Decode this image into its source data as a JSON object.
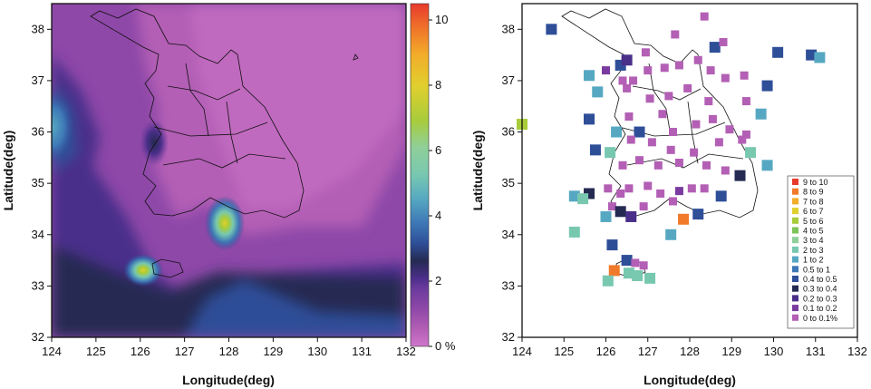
{
  "chart_data": [
    {
      "type": "heatmap",
      "xlabel": "Longitude(deg)",
      "ylabel": "Latitude(deg)",
      "xlim": [
        124,
        132
      ],
      "ylim": [
        32,
        38.5
      ],
      "xticks": [
        "124",
        "125",
        "126",
        "127",
        "128",
        "129",
        "130",
        "131",
        "132"
      ],
      "yticks": [
        "32",
        "33",
        "34",
        "35",
        "36",
        "37",
        "38"
      ],
      "colorbar": {
        "range": [
          0,
          10.5
        ],
        "labels": [
          {
            "value": 0,
            "text": "0 %"
          },
          {
            "value": 2,
            "text": "2"
          },
          {
            "value": 4,
            "text": "4"
          },
          {
            "value": 6,
            "text": "6"
          },
          {
            "value": 8,
            "text": "8"
          },
          {
            "value": 10,
            "text": "10"
          }
        ]
      },
      "hotspots": [
        {
          "lon": 127.8,
          "lat": 34.25,
          "value": 9
        },
        {
          "lon": 126.15,
          "lat": 33.3,
          "value": 7
        },
        {
          "lon": 124.0,
          "lat": 36.0,
          "value": 4
        },
        {
          "lon": 125.7,
          "lat": 35.7,
          "value": 2
        }
      ]
    },
    {
      "type": "scatter",
      "xlabel": "Longitude(deg)",
      "ylabel": "Latitude(deg)",
      "xlim": [
        124,
        132
      ],
      "ylim": [
        32,
        38.5
      ],
      "xticks": [
        "124",
        "125",
        "126",
        "127",
        "128",
        "129",
        "130",
        "131",
        "132"
      ],
      "yticks": [
        "32",
        "33",
        "34",
        "35",
        "36",
        "37",
        "38"
      ],
      "legend": {
        "position": "bottom-right",
        "entries": [
          {
            "label": "9  to  10",
            "color": "#e83a2c"
          },
          {
            "label": "8  to  9",
            "color": "#f07a2a"
          },
          {
            "label": "7  to  8",
            "color": "#f2ad2a"
          },
          {
            "label": "6  to  7",
            "color": "#e1cf2e"
          },
          {
            "label": "5  to  6",
            "color": "#a8cc3a"
          },
          {
            "label": "4  to  5",
            "color": "#7cc35a"
          },
          {
            "label": "3  to  4",
            "color": "#8fcf9a"
          },
          {
            "label": "2  to  3",
            "color": "#78c8b0"
          },
          {
            "label": "1  to  2",
            "color": "#56a8c2"
          },
          {
            "label": "0.5  to  1",
            "color": "#3e78b6"
          },
          {
            "label": "0.4  to  0.5",
            "color": "#2e4e98"
          },
          {
            "label": "0.3  to  0.4",
            "color": "#252a52"
          },
          {
            "label": "0.2  to  0.3",
            "color": "#4a2f8a"
          },
          {
            "label": "0.1  to  0.2",
            "color": "#7a3aa0"
          },
          {
            "label": "0  to  0.1%",
            "color": "#b35fb5"
          }
        ]
      },
      "points": [
        {
          "x": 124.7,
          "y": 38.0,
          "c": 10
        },
        {
          "x": 124.0,
          "y": 36.15,
          "c": 4
        },
        {
          "x": 125.6,
          "y": 37.1,
          "c": 8
        },
        {
          "x": 126.0,
          "y": 37.2,
          "c": 13
        },
        {
          "x": 126.35,
          "y": 37.3,
          "c": 10
        },
        {
          "x": 126.5,
          "y": 37.4,
          "c": 12
        },
        {
          "x": 126.95,
          "y": 37.55,
          "c": 14
        },
        {
          "x": 127.65,
          "y": 37.9,
          "c": 14
        },
        {
          "x": 128.35,
          "y": 38.25,
          "c": 14
        },
        {
          "x": 128.6,
          "y": 37.65,
          "c": 10
        },
        {
          "x": 128.8,
          "y": 37.75,
          "c": 14
        },
        {
          "x": 130.1,
          "y": 37.55,
          "c": 10
        },
        {
          "x": 130.9,
          "y": 37.5,
          "c": 10
        },
        {
          "x": 131.1,
          "y": 37.45,
          "c": 8
        },
        {
          "x": 125.8,
          "y": 36.78,
          "c": 8
        },
        {
          "x": 125.6,
          "y": 36.25,
          "c": 10
        },
        {
          "x": 126.25,
          "y": 36.0,
          "c": 8
        },
        {
          "x": 126.4,
          "y": 37.0,
          "c": 14
        },
        {
          "x": 126.65,
          "y": 37.0,
          "c": 14
        },
        {
          "x": 127.0,
          "y": 37.2,
          "c": 14
        },
        {
          "x": 127.4,
          "y": 37.25,
          "c": 14
        },
        {
          "x": 127.75,
          "y": 37.3,
          "c": 14
        },
        {
          "x": 128.2,
          "y": 37.4,
          "c": 14
        },
        {
          "x": 128.5,
          "y": 37.2,
          "c": 14
        },
        {
          "x": 128.85,
          "y": 37.05,
          "c": 14
        },
        {
          "x": 129.3,
          "y": 37.1,
          "c": 14
        },
        {
          "x": 126.5,
          "y": 36.85,
          "c": 14
        },
        {
          "x": 127.05,
          "y": 36.65,
          "c": 14
        },
        {
          "x": 127.5,
          "y": 36.7,
          "c": 14
        },
        {
          "x": 127.95,
          "y": 36.85,
          "c": 14
        },
        {
          "x": 128.45,
          "y": 36.6,
          "c": 14
        },
        {
          "x": 129.35,
          "y": 36.6,
          "c": 14
        },
        {
          "x": 129.85,
          "y": 36.9,
          "c": 10
        },
        {
          "x": 129.7,
          "y": 36.35,
          "c": 8
        },
        {
          "x": 126.55,
          "y": 36.3,
          "c": 14
        },
        {
          "x": 126.8,
          "y": 36.0,
          "c": 10
        },
        {
          "x": 127.35,
          "y": 36.35,
          "c": 14
        },
        {
          "x": 127.6,
          "y": 36.0,
          "c": 14
        },
        {
          "x": 128.15,
          "y": 36.15,
          "c": 14
        },
        {
          "x": 128.55,
          "y": 36.25,
          "c": 14
        },
        {
          "x": 128.95,
          "y": 36.05,
          "c": 14
        },
        {
          "x": 129.35,
          "y": 35.95,
          "c": 14
        },
        {
          "x": 129.25,
          "y": 35.85,
          "c": 14
        },
        {
          "x": 125.75,
          "y": 35.65,
          "c": 10
        },
        {
          "x": 126.1,
          "y": 35.6,
          "c": 7
        },
        {
          "x": 126.6,
          "y": 35.85,
          "c": 14
        },
        {
          "x": 127.1,
          "y": 35.8,
          "c": 14
        },
        {
          "x": 127.55,
          "y": 35.65,
          "c": 14
        },
        {
          "x": 128.1,
          "y": 35.6,
          "c": 14
        },
        {
          "x": 128.7,
          "y": 35.8,
          "c": 14
        },
        {
          "x": 129.45,
          "y": 35.6,
          "c": 7
        },
        {
          "x": 129.85,
          "y": 35.35,
          "c": 8
        },
        {
          "x": 126.4,
          "y": 35.35,
          "c": 14
        },
        {
          "x": 126.8,
          "y": 35.45,
          "c": 14
        },
        {
          "x": 127.25,
          "y": 35.35,
          "c": 14
        },
        {
          "x": 127.75,
          "y": 35.4,
          "c": 14
        },
        {
          "x": 128.4,
          "y": 35.35,
          "c": 14
        },
        {
          "x": 128.85,
          "y": 35.25,
          "c": 14
        },
        {
          "x": 129.2,
          "y": 35.15,
          "c": 11
        },
        {
          "x": 125.6,
          "y": 34.8,
          "c": 11
        },
        {
          "x": 125.25,
          "y": 34.75,
          "c": 8
        },
        {
          "x": 125.45,
          "y": 34.7,
          "c": 7
        },
        {
          "x": 126.05,
          "y": 34.9,
          "c": 14
        },
        {
          "x": 126.35,
          "y": 34.8,
          "c": 14
        },
        {
          "x": 126.55,
          "y": 34.9,
          "c": 14
        },
        {
          "x": 127.0,
          "y": 34.95,
          "c": 14
        },
        {
          "x": 127.3,
          "y": 34.8,
          "c": 14
        },
        {
          "x": 127.75,
          "y": 34.85,
          "c": 13
        },
        {
          "x": 128.05,
          "y": 34.9,
          "c": 14
        },
        {
          "x": 128.35,
          "y": 34.9,
          "c": 14
        },
        {
          "x": 128.75,
          "y": 34.75,
          "c": 10
        },
        {
          "x": 126.15,
          "y": 34.55,
          "c": 14
        },
        {
          "x": 126.35,
          "y": 34.45,
          "c": 11
        },
        {
          "x": 126.6,
          "y": 34.35,
          "c": 12
        },
        {
          "x": 126.9,
          "y": 34.55,
          "c": 14
        },
        {
          "x": 127.6,
          "y": 34.65,
          "c": 14
        },
        {
          "x": 126.0,
          "y": 34.35,
          "c": 8
        },
        {
          "x": 127.85,
          "y": 34.3,
          "c": 1
        },
        {
          "x": 128.2,
          "y": 34.4,
          "c": 10
        },
        {
          "x": 125.25,
          "y": 34.05,
          "c": 7
        },
        {
          "x": 127.55,
          "y": 34.0,
          "c": 8
        },
        {
          "x": 126.15,
          "y": 33.8,
          "c": 10
        },
        {
          "x": 126.5,
          "y": 33.5,
          "c": 10
        },
        {
          "x": 126.7,
          "y": 33.45,
          "c": 14
        },
        {
          "x": 126.9,
          "y": 33.4,
          "c": 14
        },
        {
          "x": 126.2,
          "y": 33.3,
          "c": 1
        },
        {
          "x": 126.55,
          "y": 33.25,
          "c": 7
        },
        {
          "x": 126.05,
          "y": 33.1,
          "c": 7
        },
        {
          "x": 126.75,
          "y": 33.2,
          "c": 7
        },
        {
          "x": 127.05,
          "y": 33.15,
          "c": 7
        }
      ]
    }
  ]
}
